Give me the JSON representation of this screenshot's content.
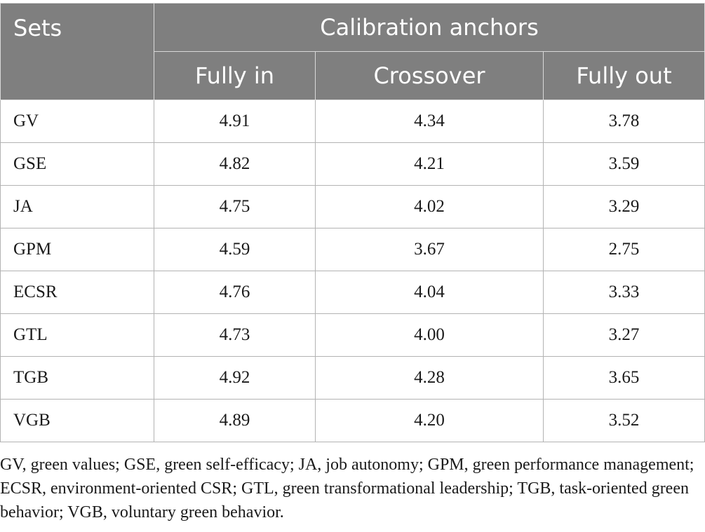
{
  "header": {
    "sets": "Sets",
    "calibration": "Calibration anchors",
    "fully_in": "Fully in",
    "crossover": "Crossover",
    "fully_out": "Fully out"
  },
  "rows": [
    {
      "set": "GV",
      "fully_in": "4.91",
      "crossover": "4.34",
      "fully_out": "3.78"
    },
    {
      "set": "GSE",
      "fully_in": "4.82",
      "crossover": "4.21",
      "fully_out": "3.59"
    },
    {
      "set": "JA",
      "fully_in": "4.75",
      "crossover": "4.02",
      "fully_out": "3.29"
    },
    {
      "set": "GPM",
      "fully_in": "4.59",
      "crossover": "3.67",
      "fully_out": "2.75"
    },
    {
      "set": "ECSR",
      "fully_in": "4.76",
      "crossover": "4.04",
      "fully_out": "3.33"
    },
    {
      "set": "GTL",
      "fully_in": "4.73",
      "crossover": "4.00",
      "fully_out": "3.27"
    },
    {
      "set": "TGB",
      "fully_in": "4.92",
      "crossover": "4.28",
      "fully_out": "3.65"
    },
    {
      "set": "VGB",
      "fully_in": "4.89",
      "crossover": "4.20",
      "fully_out": "3.52"
    }
  ],
  "footnote": "GV, green values; GSE, green self-efficacy; JA, job autonomy; GPM, green performance management; ECSR, environment-oriented CSR; GTL, green transformational leadership; TGB, task-oriented green behavior; VGB, voluntary green behavior.",
  "colors": {
    "header_bg": "#7f7f7f",
    "header_text": "#ffffff",
    "grid": "#b3b3b3"
  }
}
